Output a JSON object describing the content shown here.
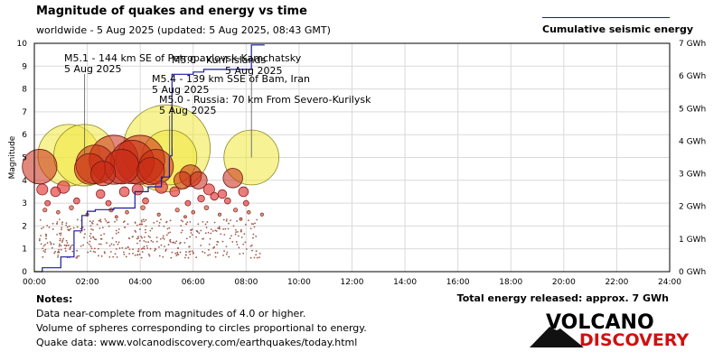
{
  "title": "Magnitude of quakes and energy vs time",
  "subtitle": "worldwide -  5 Aug 2025 (updated: 5 Aug 2025, 08:43 GMT)",
  "legend": {
    "label": "Cumulative seismic energy",
    "color": "#1a1aa0"
  },
  "notes": {
    "heading": "Notes:",
    "lines": [
      "Data near-complete from magnitudes of 4.0 or higher.",
      "Volume of spheres corresponding to circles proportional to energy.",
      "Quake data: www.volcanodiscovery.com/earthquakes/today.html"
    ]
  },
  "total_energy": "Total energy released: approx. 7 GWh",
  "logo": {
    "line1": "VOLCANO",
    "line2": "DISCOVERY",
    "accent": "#d01010"
  },
  "chart_data": {
    "type": "scatter",
    "ylabel": "Magnitude",
    "xlim": [
      0,
      24
    ],
    "ylim": [
      0,
      10
    ],
    "y2lim": [
      0,
      7
    ],
    "xticks": [
      "00:00",
      "02:00",
      "04:00",
      "06:00",
      "08:00",
      "10:00",
      "12:00",
      "14:00",
      "16:00",
      "18:00",
      "20:00",
      "22:00",
      "24:00"
    ],
    "yticks": [
      "0",
      "1",
      "2",
      "3",
      "4",
      "5",
      "6",
      "7",
      "8",
      "9",
      "10"
    ],
    "y2ticks": [
      "0 GWh",
      "1 GWh",
      "2 GWh",
      "3 GWh",
      "4 GWh",
      "5 GWh",
      "6 GWh",
      "7 GWh"
    ],
    "grid": true,
    "legend_position": "top-right",
    "annotations": [
      {
        "lines": [
          "M5.1 - 144 km SE of Petropavlovsk-Kamchatsky",
          "5 Aug 2025"
        ],
        "x": 1.9,
        "y": 5.1
      },
      {
        "lines": [
          "M5.4 - 139 km SSE of Bam, Iran",
          "5 Aug 2025"
        ],
        "x": 5.2,
        "y": 5.4
      },
      {
        "lines": [
          "M5.0 - Russia: 70 km From Severo-Kurilysk",
          "5 Aug 2025"
        ],
        "x": 5.1,
        "y": 5.0
      },
      {
        "lines": [
          "M5.0 - Kuril Islands",
          "5 Aug 2025"
        ],
        "x": 8.2,
        "y": 5.0
      }
    ],
    "series": [
      {
        "name": "Cumulative seismic energy",
        "unit": "GWh",
        "x": [
          0,
          0.3,
          0.3,
          1.0,
          1.0,
          1.5,
          1.5,
          1.8,
          1.8,
          2.0,
          2.0,
          2.3,
          2.3,
          3.0,
          3.0,
          3.8,
          3.8,
          4.3,
          4.3,
          4.8,
          4.8,
          5.1,
          5.1,
          5.2,
          5.2,
          6.0,
          6.0,
          6.4,
          6.4,
          8.2,
          8.2,
          8.7
        ],
        "y": [
          0,
          0,
          0.12,
          0.12,
          0.45,
          0.45,
          1.25,
          1.25,
          1.72,
          1.72,
          1.85,
          1.85,
          1.9,
          1.9,
          1.95,
          1.95,
          2.45,
          2.45,
          2.6,
          2.6,
          2.9,
          2.9,
          3.55,
          3.55,
          6.05,
          6.05,
          6.12,
          6.12,
          6.2,
          6.2,
          6.95,
          6.95
        ]
      },
      {
        "name": "Earthquakes",
        "points": [
          {
            "t": 0.2,
            "m": 4.6
          },
          {
            "t": 1.3,
            "m": 5.1
          },
          {
            "t": 1.9,
            "m": 5.1
          },
          {
            "t": 2.1,
            "m": 4.5
          },
          {
            "t": 2.3,
            "m": 4.7
          },
          {
            "t": 2.6,
            "m": 4.3
          },
          {
            "t": 3.0,
            "m": 4.9
          },
          {
            "t": 3.3,
            "m": 4.6
          },
          {
            "t": 3.7,
            "m": 4.8
          },
          {
            "t": 4.0,
            "m": 4.9
          },
          {
            "t": 4.4,
            "m": 4.4
          },
          {
            "t": 4.6,
            "m": 4.6
          },
          {
            "t": 5.0,
            "m": 5.4
          },
          {
            "t": 5.1,
            "m": 5.0
          },
          {
            "t": 5.6,
            "m": 4.0
          },
          {
            "t": 5.9,
            "m": 4.2
          },
          {
            "t": 6.2,
            "m": 4.0
          },
          {
            "t": 6.6,
            "m": 3.6
          },
          {
            "t": 7.1,
            "m": 3.4
          },
          {
            "t": 7.5,
            "m": 4.1
          },
          {
            "t": 8.2,
            "m": 5.0
          },
          {
            "t": 0.3,
            "m": 3.6
          },
          {
            "t": 0.8,
            "m": 3.5
          },
          {
            "t": 1.1,
            "m": 3.7
          },
          {
            "t": 2.5,
            "m": 3.4
          },
          {
            "t": 3.4,
            "m": 3.5
          },
          {
            "t": 3.9,
            "m": 3.6
          },
          {
            "t": 4.8,
            "m": 3.7
          },
          {
            "t": 5.3,
            "m": 3.5
          },
          {
            "t": 6.8,
            "m": 3.3
          },
          {
            "t": 7.9,
            "m": 3.5
          },
          {
            "t": 8.0,
            "m": 3.0
          },
          {
            "t": 6.3,
            "m": 3.2
          },
          {
            "t": 0.5,
            "m": 3.0
          },
          {
            "t": 1.6,
            "m": 3.1
          },
          {
            "t": 2.8,
            "m": 3.0
          },
          {
            "t": 4.2,
            "m": 3.1
          },
          {
            "t": 5.8,
            "m": 3.0
          },
          {
            "t": 7.3,
            "m": 3.1
          },
          {
            "t": 0.4,
            "m": 2.7
          },
          {
            "t": 0.9,
            "m": 2.6
          },
          {
            "t": 1.4,
            "m": 2.8
          },
          {
            "t": 2.0,
            "m": 2.5
          },
          {
            "t": 2.9,
            "m": 2.7
          },
          {
            "t": 3.5,
            "m": 2.6
          },
          {
            "t": 4.1,
            "m": 2.8
          },
          {
            "t": 4.7,
            "m": 2.5
          },
          {
            "t": 5.4,
            "m": 2.7
          },
          {
            "t": 6.0,
            "m": 2.6
          },
          {
            "t": 6.5,
            "m": 2.8
          },
          {
            "t": 7.0,
            "m": 2.5
          },
          {
            "t": 7.6,
            "m": 2.7
          },
          {
            "t": 8.1,
            "m": 2.6
          },
          {
            "t": 8.6,
            "m": 2.5
          },
          {
            "t": 3.1,
            "m": 2.4
          },
          {
            "t": 5.7,
            "m": 2.4
          },
          {
            "t": 7.8,
            "m": 2.3
          }
        ]
      }
    ]
  }
}
